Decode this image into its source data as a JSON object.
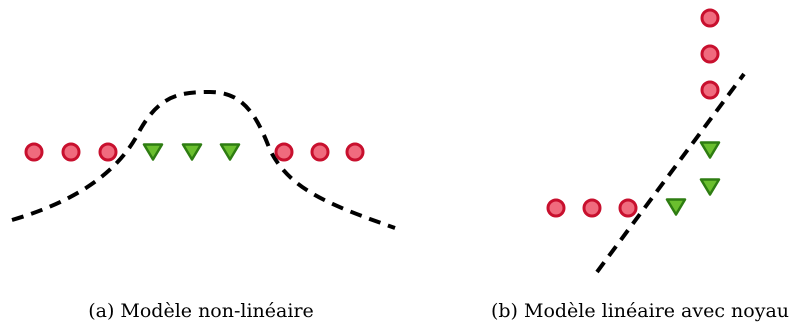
{
  "panels": [
    {
      "id": "a",
      "caption": "(a) Modèle non-linéaire",
      "separator": "dashed-curve",
      "circles": 6,
      "triangles": 3
    },
    {
      "id": "b",
      "caption": "(b) Modèle linéaire avec noyau",
      "separator": "dashed-line",
      "circles": 6,
      "triangles": 3
    }
  ],
  "colors": {
    "circle_fill": "#f06b7e",
    "circle_stroke": "#c8102e",
    "triangle_fill": "#6abf2e",
    "triangle_stroke": "#2e7d12",
    "separator": "#000000"
  }
}
